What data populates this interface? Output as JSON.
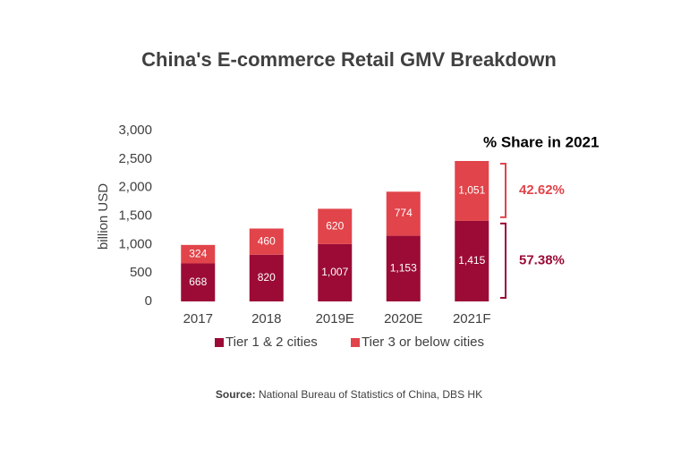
{
  "chart_data": {
    "type": "stacked_bar",
    "title": "China's E-commerce Retail GMV Breakdown",
    "y_label": "billion USD",
    "categories": [
      "2017",
      "2018",
      "2019E",
      "2020E",
      "2021F"
    ],
    "series": [
      {
        "name": "Tier 1 & 2 cities",
        "color": "#9b0b36",
        "values": [
          668,
          820,
          1007,
          1153,
          1415
        ],
        "value_labels": [
          "668",
          "820",
          "1,007",
          "1,153",
          "1,415"
        ]
      },
      {
        "name": "Tier 3 or below cities",
        "color": "#e1444a",
        "values": [
          324,
          460,
          620,
          774,
          1051
        ],
        "value_labels": [
          "324",
          "460",
          "620",
          "774",
          "1,051"
        ]
      }
    ],
    "ylim": [
      0,
      3000
    ],
    "yticks": [
      0,
      500,
      {
        "value": 1000,
        "label": "1,000"
      },
      {
        "value": 1500,
        "label": "1,500"
      },
      {
        "value": 2000,
        "label": "2,000"
      },
      {
        "value": 2500,
        "label": "2,500"
      },
      {
        "value": 3000,
        "label": "3,000"
      }
    ],
    "grid": false,
    "share_title": "% Share in 2021",
    "share_labels": [
      "57.38%",
      "42.62%"
    ],
    "source_label": "Source:",
    "source": "National Bureau of Statistics of China, DBS HK"
  }
}
